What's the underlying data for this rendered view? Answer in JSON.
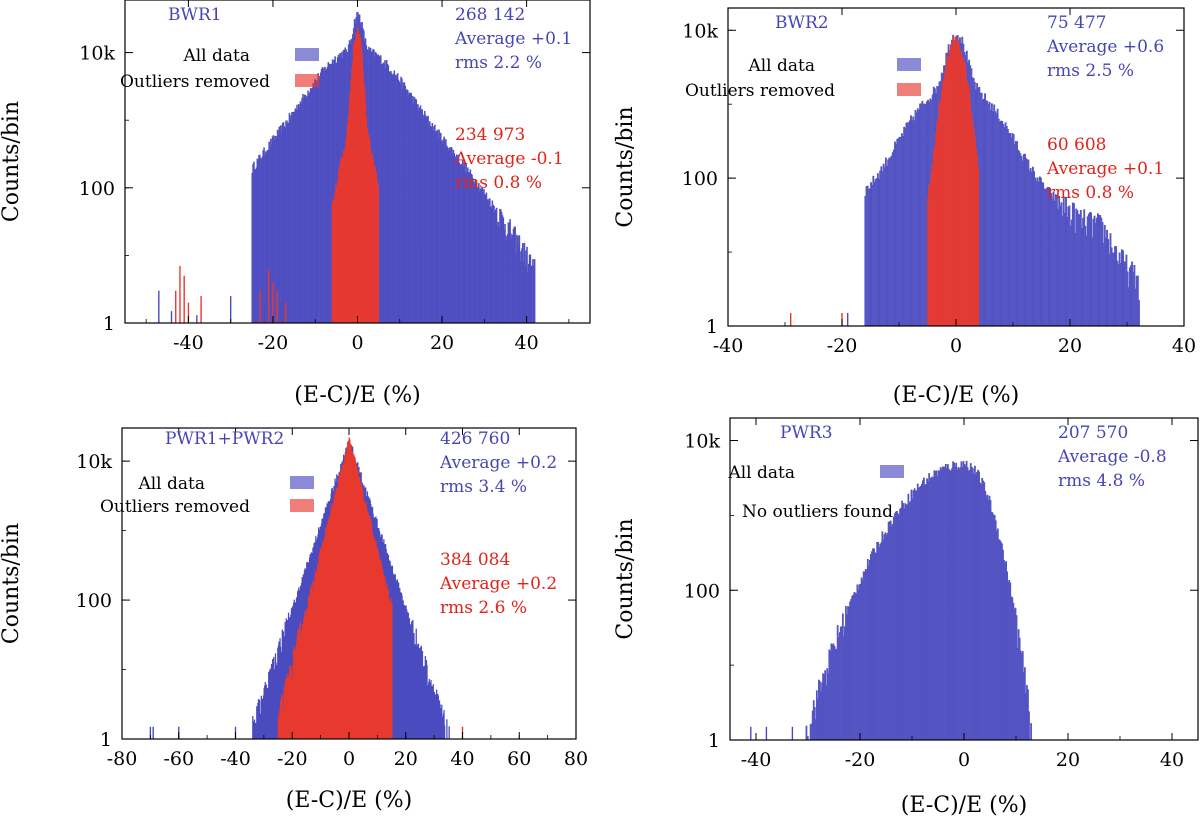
{
  "colors": {
    "all_data": "#4b4bc0",
    "outliers_removed": "#e8392f",
    "blue_text": "#4646b4",
    "red_text": "#e0231b"
  },
  "chart_data": [
    {
      "type": "bar",
      "scale": "log",
      "title": "BWR1",
      "xlabel": "(E-C)/E (%)",
      "ylabel": "Counts/bin",
      "xlim": [
        -55,
        55
      ],
      "ylim": [
        1,
        60000
      ],
      "xticks": [
        -40,
        -20,
        0,
        20,
        40
      ],
      "xtick_labels": [
        "-40",
        "-20",
        "0",
        "20",
        "40"
      ],
      "yticks": [
        1,
        100,
        10000
      ],
      "ytick_labels": [
        "1",
        "100",
        "10k"
      ],
      "legend": [
        "All data",
        "Outliers removed"
      ],
      "stats_all": [
        "268 142",
        "Average +0.1",
        "rms 2.2 %"
      ],
      "stats_clean": [
        "234 973",
        "Average -0.1",
        "rms 0.8 %"
      ],
      "series": [
        {
          "name": "All data",
          "peak": 25000,
          "center": 0,
          "core": 0.9,
          "wings": [
            [
              0,
              6,
              0.35
            ],
            [
              0,
              11,
              0.1
            ]
          ],
          "secondary": [
            25,
            9,
            25
          ],
          "xmin": -25,
          "xmax": 42,
          "cutoff": 1.5,
          "spikes": [
            [
              -47,
              3
            ],
            [
              -44,
              1.5
            ],
            [
              -38,
              1.3
            ],
            [
              -30,
              2.5
            ],
            [
              -22,
              1.8
            ],
            [
              -18,
              2
            ]
          ]
        },
        {
          "name": "Outliers removed",
          "peak": 20000,
          "center": -0.1,
          "core": 0.8,
          "wings": [
            [
              0,
              2.5,
              0.04
            ]
          ],
          "xmin": -6,
          "xmax": 5,
          "cutoff": 1.5,
          "spikes": [
            [
              -43,
              3
            ],
            [
              -42,
              7
            ],
            [
              -41,
              5
            ],
            [
              -40,
              2
            ],
            [
              -37,
              2.5
            ],
            [
              -23,
              3
            ],
            [
              -21,
              6
            ],
            [
              -20,
              4
            ],
            [
              -19,
              3
            ],
            [
              -17,
              2
            ]
          ]
        }
      ]
    },
    {
      "type": "bar",
      "scale": "log",
      "title": "BWR2",
      "xlabel": "(E-C)/E (%)",
      "ylabel": "Counts/bin",
      "xlim": [
        -40,
        40
      ],
      "ylim": [
        1,
        20000
      ],
      "xticks": [
        -40,
        -20,
        0,
        20,
        40
      ],
      "xtick_labels": [
        "-40",
        "-20",
        "0",
        "20",
        "40"
      ],
      "yticks": [
        1,
        100,
        10000
      ],
      "ytick_labels": [
        "1",
        "100",
        "10k"
      ],
      "legend": [
        "All data",
        "Outliers removed"
      ],
      "stats_all": [
        "75 477",
        "Average +0.6",
        "rms 2.5 %"
      ],
      "stats_clean": [
        "60 608",
        "Average +0.1",
        "rms 0.8 %"
      ],
      "series": [
        {
          "name": "All data",
          "peak": 7000,
          "center": 0,
          "core": 1.3,
          "wings": [
            [
              0,
              5,
              0.25
            ],
            [
              0,
              12,
              0.02
            ]
          ],
          "secondary": [
            25,
            1.5,
            7
          ],
          "xmin": -16,
          "xmax": 32,
          "cutoff": 1.5,
          "spikes": [
            [
              -19,
              1.5
            ]
          ]
        },
        {
          "name": "Outliers removed",
          "peak": 7000,
          "center": -0.2,
          "core": 1.3,
          "wings": [
            [
              0,
              2.3,
              0.06
            ]
          ],
          "xmin": -5,
          "xmax": 4,
          "cutoff": 1.5,
          "spikes": [
            [
              -29,
              1.5
            ],
            [
              -20,
              1.5
            ]
          ]
        }
      ]
    },
    {
      "type": "bar",
      "scale": "log",
      "title": "PWR1+PWR2",
      "xlabel": "(E-C)/E (%)",
      "ylabel": "Counts/bin",
      "xlim": [
        -80,
        80
      ],
      "ylim": [
        1,
        30000
      ],
      "xticks": [
        -80,
        -60,
        -40,
        -20,
        0,
        20,
        40,
        60,
        80
      ],
      "xtick_labels": [
        "-80",
        "-60",
        "-40",
        "-20",
        "0",
        "20",
        "40",
        "60",
        "80"
      ],
      "yticks": [
        1,
        100,
        10000
      ],
      "ytick_labels": [
        "1",
        "100",
        "10k"
      ],
      "legend": [
        "All data",
        "Outliers removed"
      ],
      "stats_all": [
        "426 760",
        "Average +0.2",
        "rms 3.4 %"
      ],
      "stats_clean": [
        "384 084",
        "Average +0.2",
        "rms 2.6 %"
      ],
      "series": [
        {
          "name": "All data",
          "peak": 19000,
          "center": 0,
          "laplace": 3.6,
          "xmin": -34,
          "xmax": 38,
          "cutoff": 1.5,
          "spikes": [
            [
              -70,
              1.5
            ],
            [
              -69,
              1.5
            ],
            [
              -60,
              1.5
            ],
            [
              -40,
              1.5
            ]
          ]
        },
        {
          "name": "Outliers removed",
          "peak": 20000,
          "center": 0,
          "laplace": 2.7,
          "xmin": -25,
          "xmax": 15,
          "cutoff": 1.5,
          "spikes": [
            [
              40,
              1.5
            ]
          ]
        }
      ]
    },
    {
      "type": "bar",
      "scale": "log",
      "title": "PWR3",
      "xlabel": "(E-C)/E (%)",
      "ylabel": "Counts/bin",
      "xlim": [
        -45,
        45
      ],
      "ylim": [
        1,
        20000
      ],
      "xticks": [
        -40,
        -20,
        0,
        20,
        40
      ],
      "xtick_labels": [
        "-40",
        "-20",
        "0",
        "20",
        "40"
      ],
      "yticks": [
        1,
        100,
        10000
      ],
      "ytick_labels": [
        "1",
        "100",
        "10k"
      ],
      "legend": [
        "All data"
      ],
      "no_outliers_text": "No outliers found",
      "stats_all": [
        "207 570",
        "Average -0.8",
        "rms 4.8 %"
      ],
      "series": [
        {
          "name": "All data",
          "peak": 4800,
          "center": 0,
          "skew_left": 7.5,
          "skew_right": 3.2,
          "xmin": -32,
          "xmax": 15,
          "cutoff": 1.5,
          "spikes": [
            [
              -41,
              1.5
            ],
            [
              -38,
              1.5
            ],
            [
              -33,
              1.5
            ]
          ]
        }
      ]
    }
  ]
}
